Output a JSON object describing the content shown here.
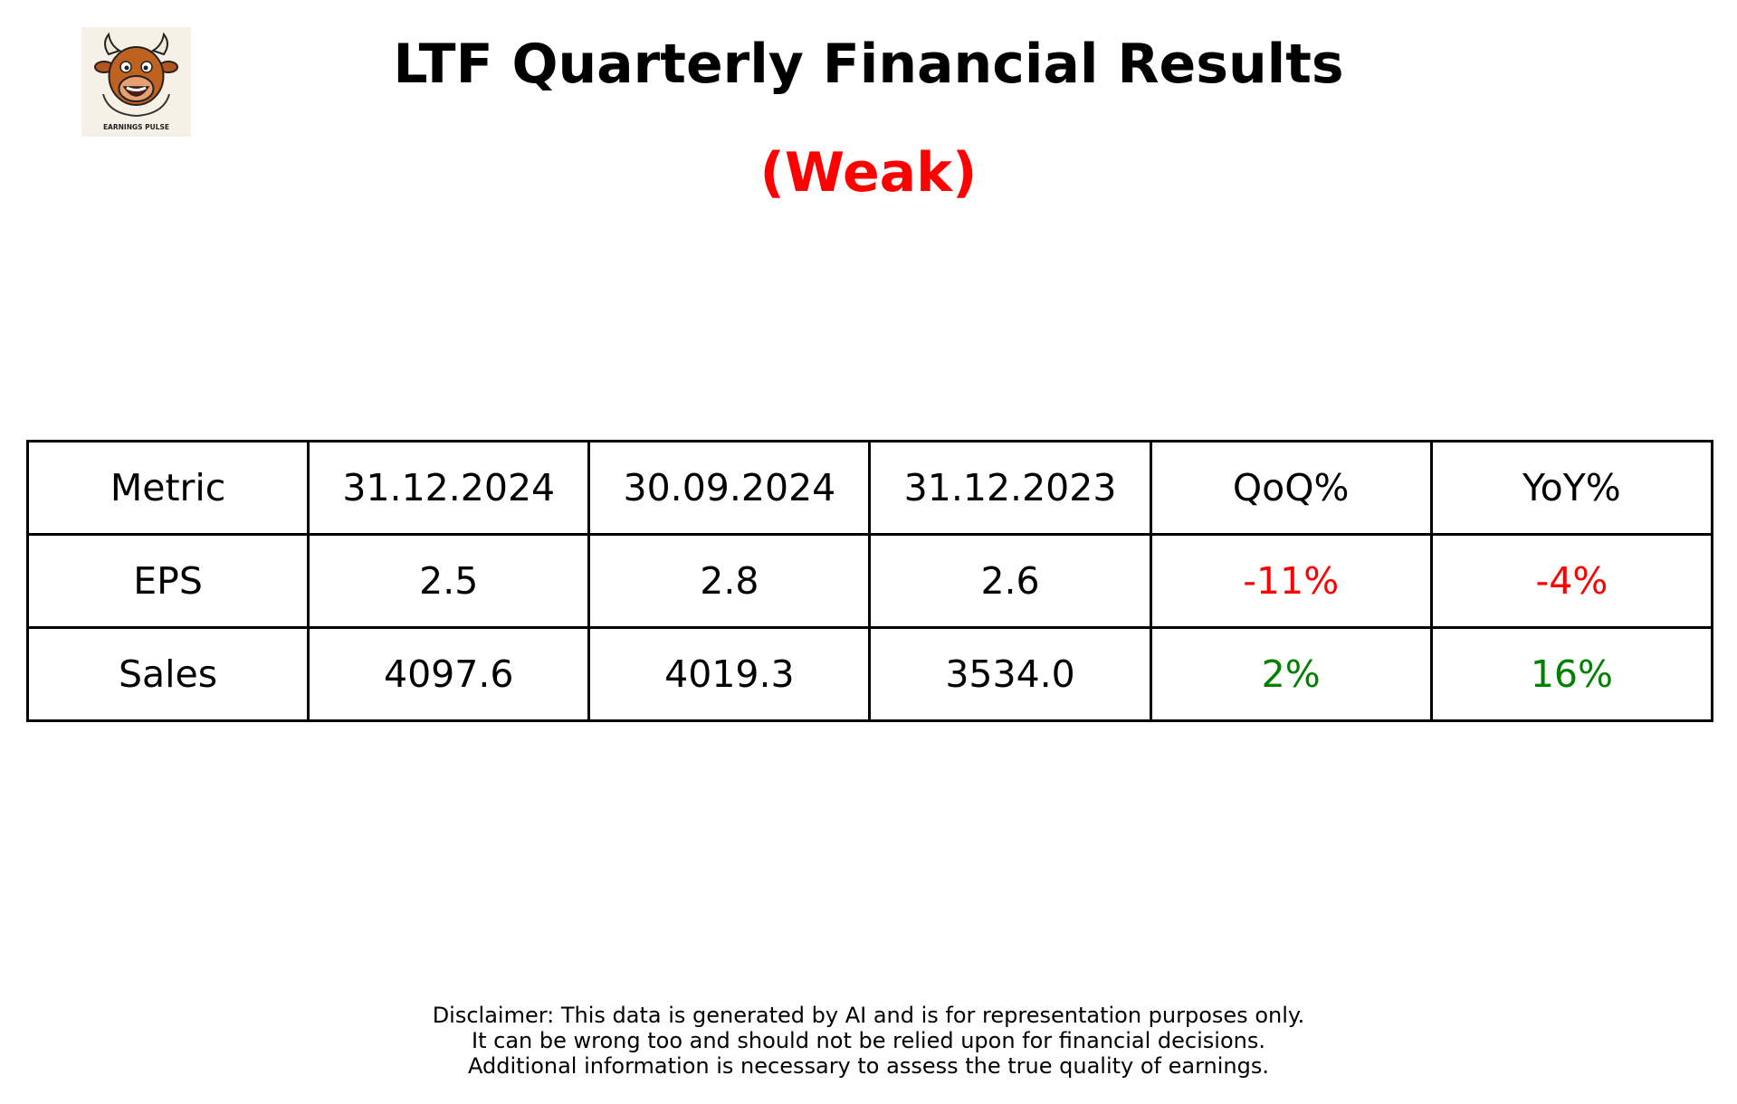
{
  "logo": {
    "text": "EARNINGS PULSE",
    "icon": "bull-icon"
  },
  "title": "LTF Quarterly Financial Results",
  "rating": {
    "label": "(Weak)",
    "color": "#ff0000"
  },
  "table": {
    "headers": [
      "Metric",
      "31.12.2024",
      "30.09.2024",
      "31.12.2023",
      "QoQ%",
      "YoY%"
    ],
    "rows": [
      {
        "metric": "EPS",
        "q_dec_2024": "2.5",
        "q_sep_2024": "2.8",
        "q_dec_2023": "2.6",
        "qoq": "-11%",
        "yoy": "-4%"
      },
      {
        "metric": "Sales",
        "q_dec_2024": "4097.6",
        "q_sep_2024": "4019.3",
        "q_dec_2023": "3534.0",
        "qoq": "2%",
        "yoy": "16%"
      }
    ],
    "colors": {
      "negative": "#ff0000",
      "positive": "#008000"
    }
  },
  "disclaimer": {
    "line1": "Disclaimer: This data is generated by AI and is for representation purposes only.",
    "line2": "It can be wrong too and should not be relied upon for financial decisions.",
    "line3": "Additional information is necessary to assess the true quality of earnings."
  }
}
